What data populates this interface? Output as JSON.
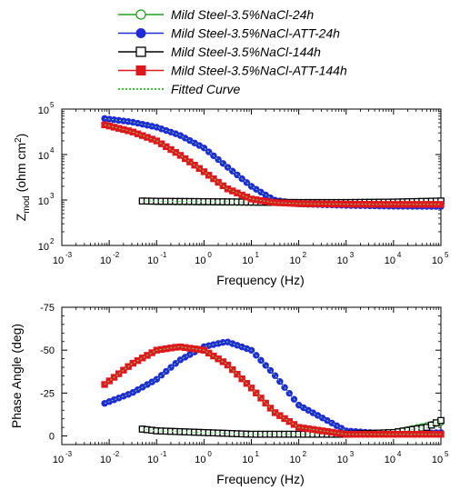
{
  "legend": [
    {
      "label": "Mild Steel-3.5%NaCl-24h",
      "color": "#22a022",
      "marker": "circle-open"
    },
    {
      "label": "Mild Steel-3.5%NaCl-ATT-24h",
      "color": "#1f2bd8",
      "marker": "circle-filled"
    },
    {
      "label": "Mild Steel-3.5%NaCl-144h",
      "color": "#000000",
      "marker": "square-open"
    },
    {
      "label": "Mild Steel-3.5%NaCl-ATT-144h",
      "color": "#e0181c",
      "marker": "square-filled"
    },
    {
      "label": "Fitted Curve",
      "color": "#33cc33",
      "marker": "dotted-line"
    }
  ],
  "chart_data": [
    {
      "type": "line",
      "xlabel": "Frequency (Hz)",
      "ylabel_main": "Z",
      "ylabel_sub": "mod",
      "ylabel_tail": " (ohm cm",
      "ylabel_sup": "2",
      "ylabel_end": ")",
      "x_scale": "log",
      "y_scale": "log",
      "xlim": [
        0.001,
        100000
      ],
      "ylim": [
        100,
        100000
      ],
      "x_ticks": [
        "10",
        "10",
        "10",
        "10",
        "10",
        "10",
        "10",
        "10",
        "10"
      ],
      "x_tick_exps": [
        "-3",
        "-2",
        "-1",
        "0",
        "1",
        "2",
        "3",
        "4",
        "5"
      ],
      "y_ticks": [
        "10",
        "10",
        "10",
        "10"
      ],
      "y_tick_exps": [
        "2",
        "3",
        "4",
        "5"
      ],
      "series": [
        {
          "name": "Mild Steel-3.5%NaCl-24h",
          "x": [
            0.05,
            0.1,
            1,
            10,
            100,
            1000,
            10000,
            100000
          ],
          "y": [
            950,
            920,
            900,
            880,
            870,
            860,
            860,
            900
          ]
        },
        {
          "name": "Mild Steel-3.5%NaCl-ATT-24h",
          "x": [
            0.008,
            0.03,
            0.1,
            0.3,
            1,
            3,
            10,
            30,
            100,
            1000,
            10000,
            100000
          ],
          "y": [
            62000,
            52000,
            40000,
            27000,
            14000,
            5500,
            2000,
            1000,
            820,
            760,
            730,
            720
          ]
        },
        {
          "name": "Mild Steel-3.5%NaCl-144h",
          "x": [
            0.05,
            0.1,
            1,
            10,
            100,
            1000,
            10000,
            100000
          ],
          "y": [
            950,
            940,
            920,
            900,
            880,
            880,
            900,
            950
          ]
        },
        {
          "name": "Mild Steel-3.5%NaCl-ATT-144h",
          "x": [
            0.008,
            0.03,
            0.1,
            0.3,
            1,
            3,
            10,
            30,
            100,
            1000,
            10000,
            100000
          ],
          "y": [
            45000,
            32000,
            20000,
            10000,
            4200,
            1800,
            1050,
            880,
            830,
            810,
            800,
            800
          ]
        }
      ]
    },
    {
      "type": "line",
      "xlabel": "Frequency (Hz)",
      "ylabel": "Phase Angle (deg)",
      "x_scale": "log",
      "xlim": [
        0.001,
        100000
      ],
      "ylim": [
        5,
        -75
      ],
      "x_ticks": [
        "10",
        "10",
        "10",
        "10",
        "10",
        "10",
        "10",
        "10",
        "10"
      ],
      "x_tick_exps": [
        "-3",
        "-2",
        "-1",
        "0",
        "1",
        "2",
        "3",
        "4",
        "5"
      ],
      "y_ticks": [
        -75,
        -50,
        -25,
        0
      ],
      "series": [
        {
          "name": "Mild Steel-3.5%NaCl-24h",
          "x": [
            0.05,
            0.1,
            1,
            10,
            100,
            1000,
            10000,
            50000,
            100000
          ],
          "y": [
            -4,
            -3,
            -2,
            -1,
            -1,
            -1,
            -2,
            -6,
            -8
          ]
        },
        {
          "name": "Mild Steel-3.5%NaCl-ATT-24h",
          "x": [
            0.008,
            0.03,
            0.1,
            0.3,
            1,
            3,
            10,
            30,
            100,
            1000,
            10000,
            100000
          ],
          "y": [
            -19,
            -25,
            -33,
            -44,
            -52,
            -55,
            -50,
            -36,
            -18,
            -3,
            -1,
            -2
          ]
        },
        {
          "name": "Mild Steel-3.5%NaCl-144h",
          "x": [
            0.05,
            0.1,
            1,
            10,
            100,
            1000,
            10000,
            50000,
            100000
          ],
          "y": [
            -4,
            -3,
            -2,
            -1,
            -1,
            -1,
            -2,
            -5,
            -9
          ]
        },
        {
          "name": "Mild Steel-3.5%NaCl-ATT-144h",
          "x": [
            0.008,
            0.03,
            0.1,
            0.3,
            1,
            3,
            10,
            30,
            100,
            1000,
            10000,
            100000
          ],
          "y": [
            -30,
            -42,
            -50,
            -52,
            -50,
            -42,
            -28,
            -14,
            -5,
            -1,
            -1,
            -1
          ]
        }
      ]
    }
  ]
}
